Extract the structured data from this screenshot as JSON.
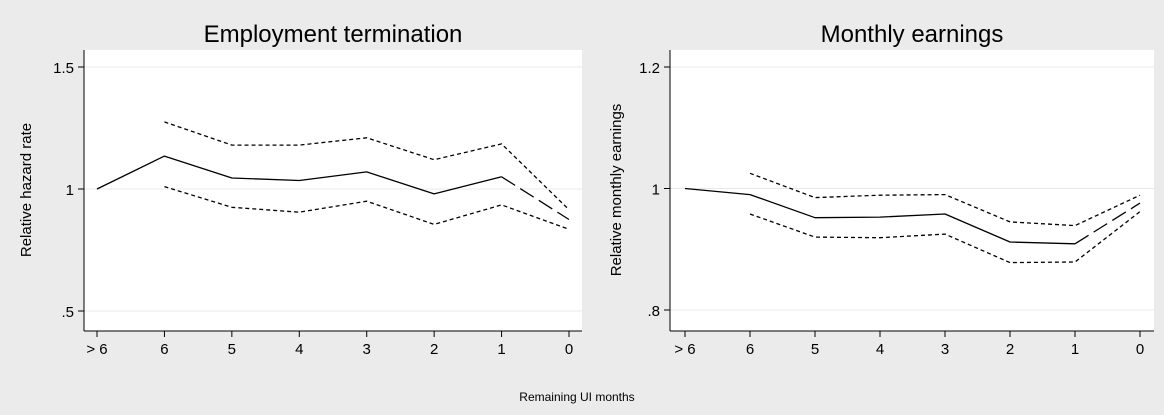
{
  "figure": {
    "shared_xlabel": "Remaining UI months"
  },
  "chart_data": [
    {
      "type": "line",
      "title": "Employment termination",
      "xlabel": "",
      "ylabel": "Relative hazard rate",
      "categories": [
        "> 6",
        "6",
        "5",
        "4",
        "3",
        "2",
        "1",
        "0"
      ],
      "ylim": [
        0.5,
        1.5
      ],
      "yticks": [
        ".5",
        "1",
        "1.5"
      ],
      "ytick_values": [
        0.5,
        1.0,
        1.5
      ],
      "grid": true,
      "series": [
        {
          "style": "solid",
          "values": [
            1.0,
            1.135,
            1.045,
            1.035,
            1.07,
            0.98,
            1.05,
            null
          ]
        },
        {
          "style": "long-dash",
          "values": [
            null,
            null,
            null,
            null,
            null,
            null,
            1.05,
            0.875
          ]
        },
        {
          "style": "short-dash",
          "values": [
            null,
            1.275,
            1.18,
            1.18,
            1.21,
            1.12,
            1.185,
            0.915
          ]
        },
        {
          "style": "short-dash",
          "values": [
            null,
            1.01,
            0.925,
            0.905,
            0.95,
            0.855,
            0.935,
            0.835
          ]
        }
      ]
    },
    {
      "type": "line",
      "title": "Monthly earnings",
      "xlabel": "",
      "ylabel": "Relative monthly earnings",
      "categories": [
        "> 6",
        "6",
        "5",
        "4",
        "3",
        "2",
        "1",
        "0"
      ],
      "ylim": [
        0.8,
        1.2
      ],
      "yticks": [
        ".8",
        "1",
        "1.2"
      ],
      "ytick_values": [
        0.8,
        1.0,
        1.2
      ],
      "grid": true,
      "series": [
        {
          "style": "solid",
          "values": [
            1.0,
            0.99,
            0.952,
            0.953,
            0.958,
            0.912,
            0.909,
            null
          ]
        },
        {
          "style": "long-dash",
          "values": [
            null,
            null,
            null,
            null,
            null,
            null,
            0.909,
            0.976
          ]
        },
        {
          "style": "short-dash",
          "values": [
            null,
            1.025,
            0.985,
            0.989,
            0.99,
            0.945,
            0.939,
            0.989
          ]
        },
        {
          "style": "short-dash",
          "values": [
            null,
            0.958,
            0.92,
            0.919,
            0.925,
            0.878,
            0.879,
            0.962
          ]
        }
      ]
    }
  ]
}
